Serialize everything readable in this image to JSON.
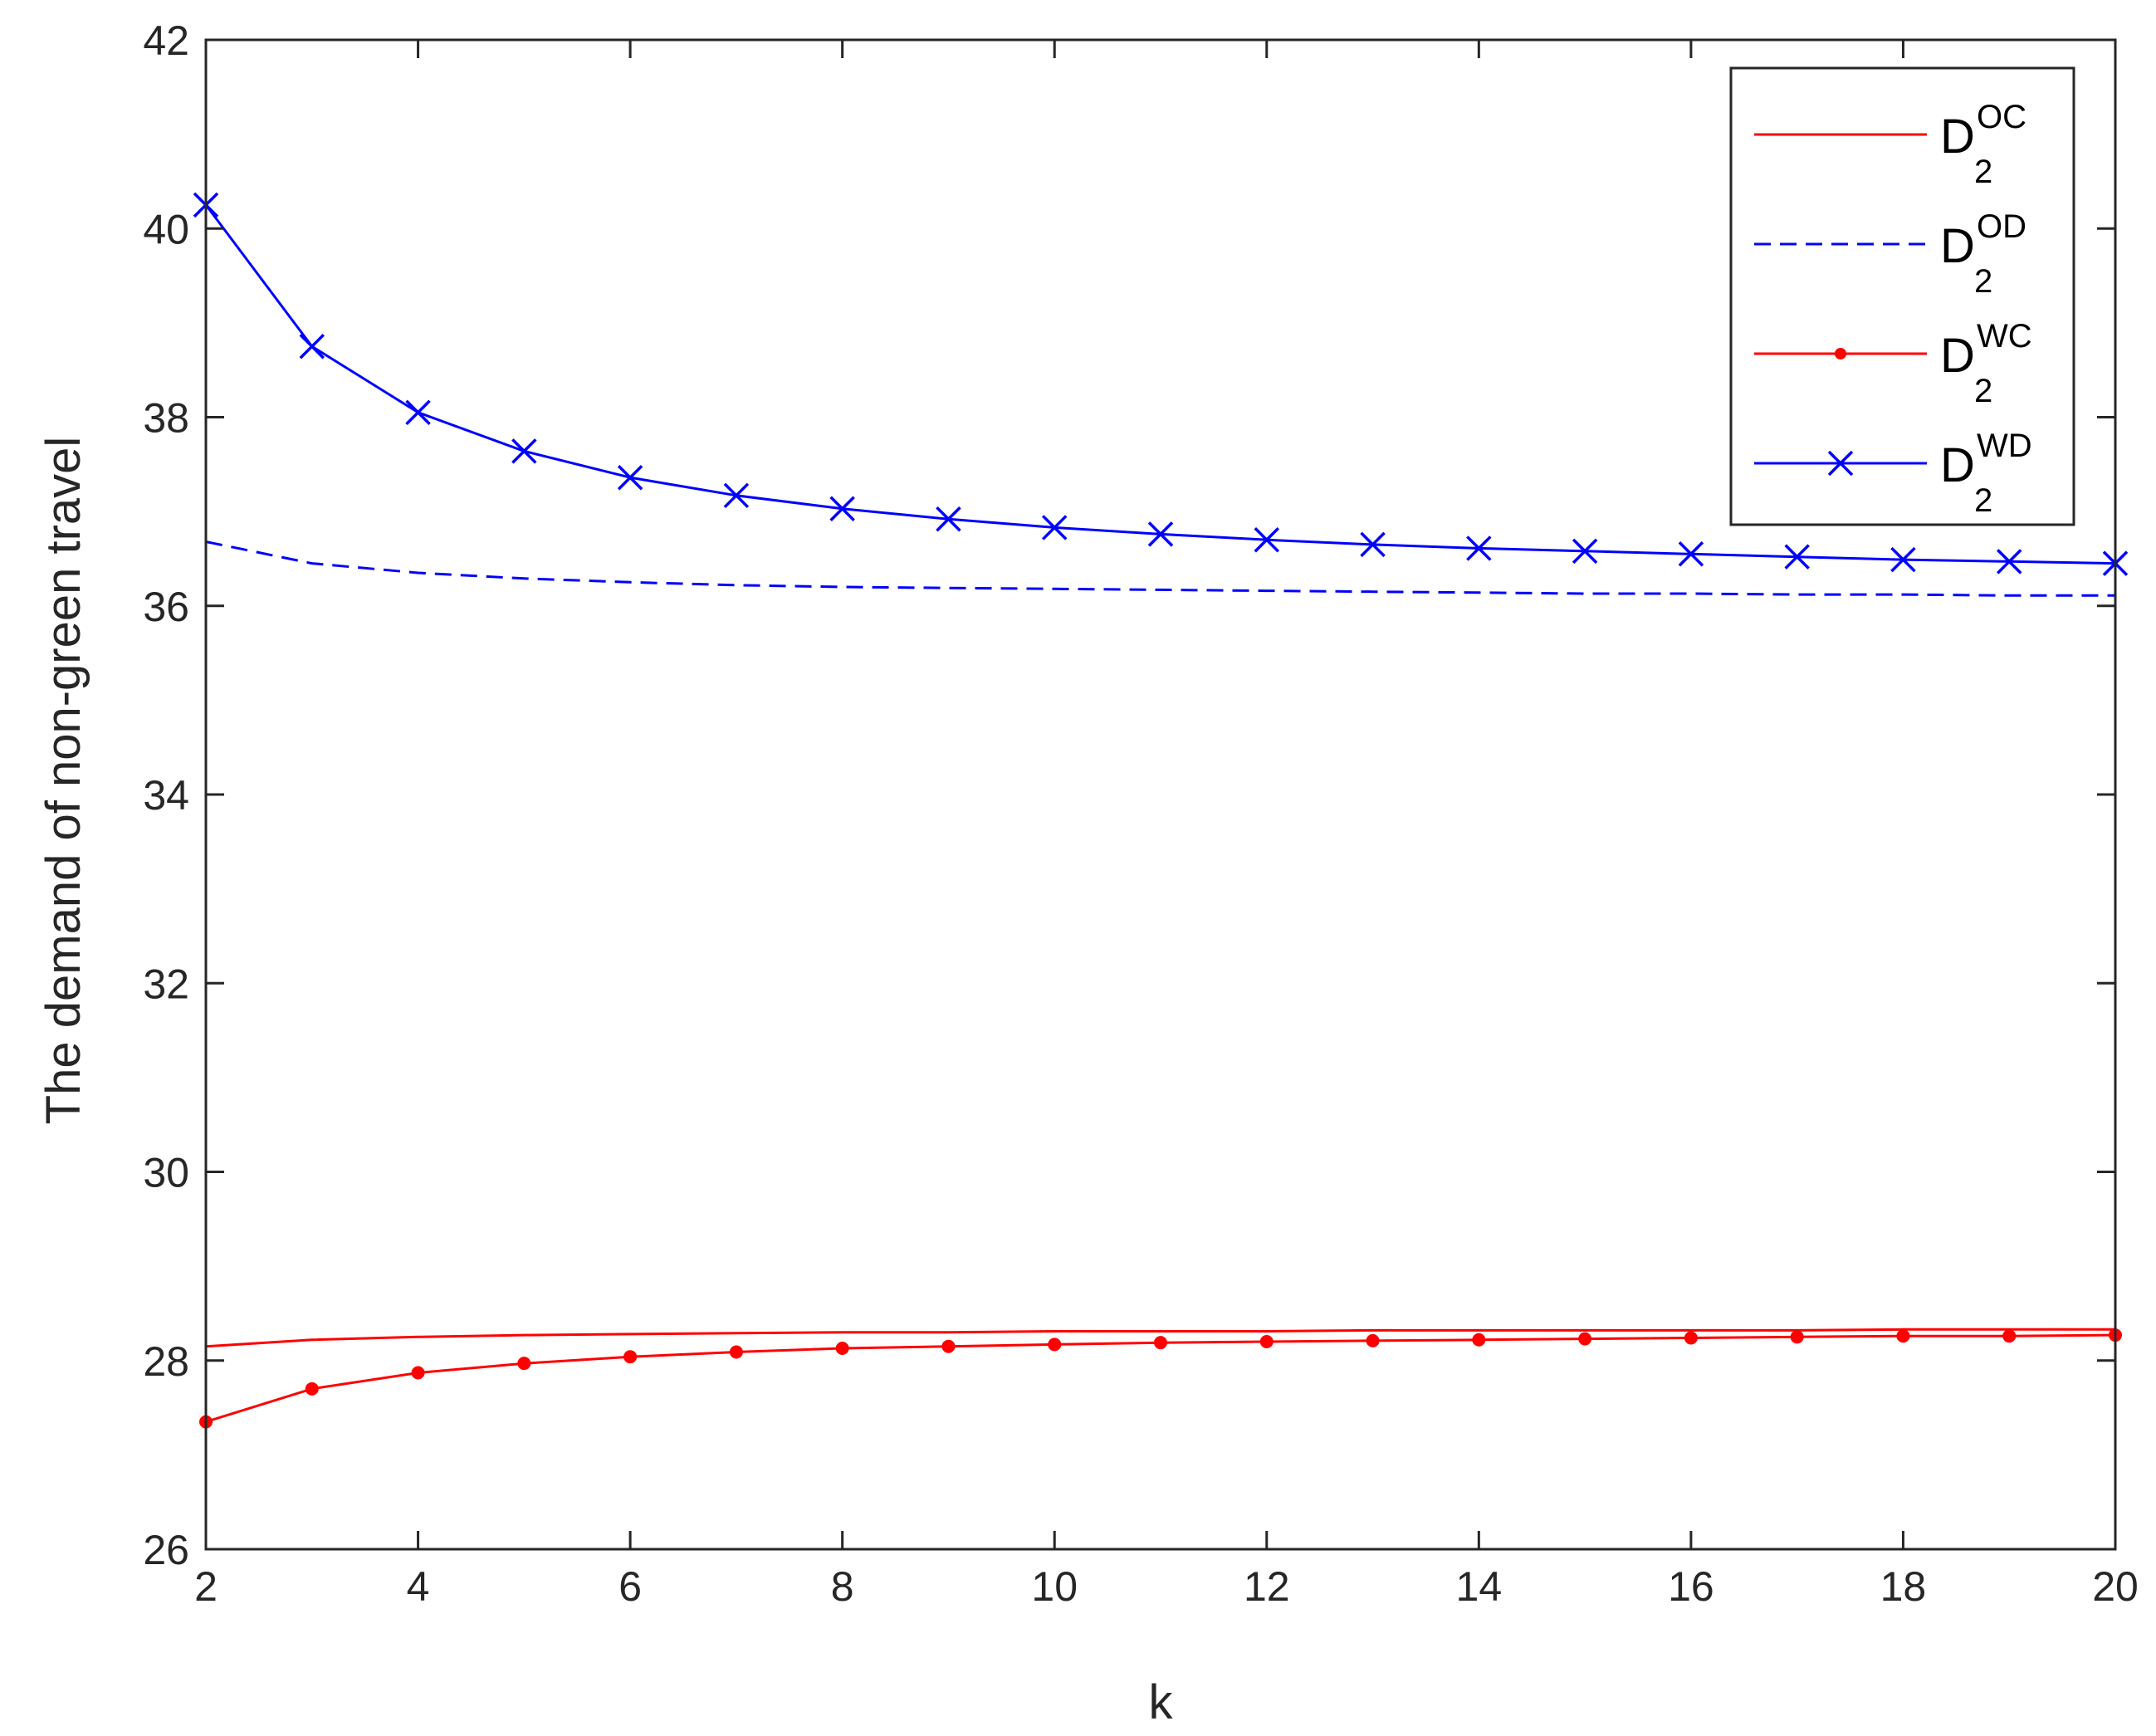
{
  "chart_data": {
    "type": "line",
    "title": "",
    "xlabel": "k",
    "ylabel": "The demand of non-green travel",
    "xlim": [
      2,
      20
    ],
    "ylim": [
      26,
      42
    ],
    "xticks": [
      2,
      4,
      6,
      8,
      10,
      12,
      14,
      16,
      18,
      20
    ],
    "yticks": [
      26,
      28,
      30,
      32,
      34,
      36,
      38,
      40,
      42
    ],
    "grid": false,
    "legend_position": "top-right",
    "x": [
      2,
      3,
      4,
      5,
      6,
      7,
      8,
      9,
      10,
      11,
      12,
      13,
      14,
      15,
      16,
      17,
      18,
      19,
      20
    ],
    "series": [
      {
        "name": "D2OC",
        "legend_base": "D",
        "legend_sub": "2",
        "legend_sup": "OC",
        "color": "#ff0000",
        "line_style": "solid",
        "marker": "none",
        "values": [
          28.15,
          28.22,
          28.25,
          28.27,
          28.28,
          28.29,
          28.3,
          28.3,
          28.31,
          28.31,
          28.31,
          28.32,
          28.32,
          28.32,
          28.32,
          28.32,
          28.33,
          28.33,
          28.33
        ]
      },
      {
        "name": "D2OD",
        "legend_base": "D",
        "legend_sub": "2",
        "legend_sup": "OD",
        "color": "#0000ff",
        "line_style": "dashed",
        "marker": "none",
        "values": [
          36.68,
          36.45,
          36.35,
          36.29,
          36.25,
          36.22,
          36.2,
          36.19,
          36.18,
          36.17,
          36.16,
          36.15,
          36.14,
          36.13,
          36.13,
          36.12,
          36.12,
          36.11,
          36.11
        ]
      },
      {
        "name": "D2WC",
        "legend_base": "D",
        "legend_sub": "2",
        "legend_sup": "WC",
        "color": "#ff0000",
        "line_style": "solid",
        "marker": "dot",
        "values": [
          27.35,
          27.7,
          27.87,
          27.97,
          28.04,
          28.09,
          28.13,
          28.15,
          28.17,
          28.19,
          28.2,
          28.21,
          28.22,
          28.23,
          28.24,
          28.25,
          28.26,
          28.26,
          28.27
        ]
      },
      {
        "name": "D2WD",
        "legend_base": "D",
        "legend_sub": "2",
        "legend_sup": "WD",
        "color": "#0000ff",
        "line_style": "solid",
        "marker": "x",
        "values": [
          40.25,
          38.75,
          38.05,
          37.64,
          37.36,
          37.17,
          37.03,
          36.92,
          36.83,
          36.76,
          36.7,
          36.65,
          36.61,
          36.58,
          36.55,
          36.52,
          36.49,
          36.47,
          36.45
        ]
      }
    ]
  }
}
